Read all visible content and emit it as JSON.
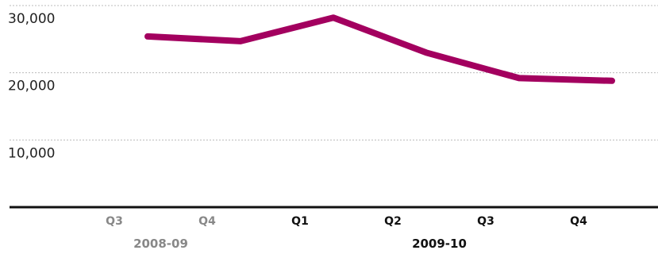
{
  "chart_data": {
    "type": "line",
    "title": "",
    "xlabel": "",
    "ylabel": "",
    "categories": [
      "Q3",
      "Q4",
      "Q1",
      "Q2",
      "Q3",
      "Q4"
    ],
    "category_colors": [
      "#888888",
      "#888888",
      "#111111",
      "#111111",
      "#111111",
      "#111111"
    ],
    "periods": [
      {
        "label": "2008-09",
        "start": 0,
        "end": 1,
        "color": "#888888"
      },
      {
        "label": "2009-10",
        "start": 2,
        "end": 5,
        "color": "#111111"
      }
    ],
    "series": [
      {
        "color": "#a3005f",
        "values": [
          25400,
          24700,
          28200,
          23000,
          19200,
          18800
        ]
      }
    ],
    "ylim": [
      0,
      30000
    ],
    "yticks": [
      10000,
      20000,
      30000
    ],
    "ytick_labels": [
      "10,000",
      "20,000",
      "30,000"
    ],
    "grid": true,
    "legend": "none"
  }
}
